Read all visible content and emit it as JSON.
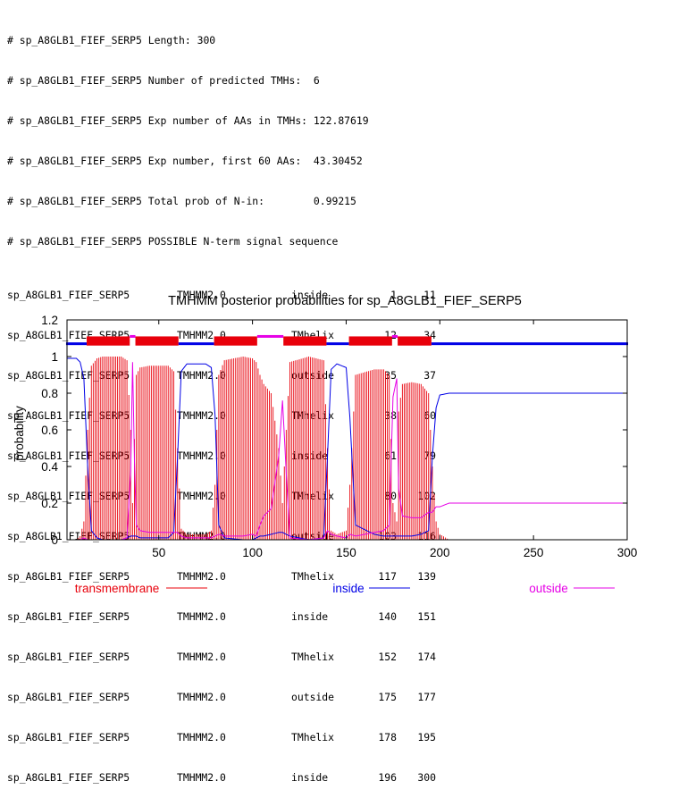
{
  "report": {
    "header_lines": [
      "# sp_A8GLB1_FIEF_SERP5 Length: 300",
      "# sp_A8GLB1_FIEF_SERP5 Number of predicted TMHs:  6",
      "# sp_A8GLB1_FIEF_SERP5 Exp number of AAs in TMHs: 122.87619",
      "# sp_A8GLB1_FIEF_SERP5 Exp number, first 60 AAs:  43.30452",
      "# sp_A8GLB1_FIEF_SERP5 Total prob of N-in:        0.99215",
      "# sp_A8GLB1_FIEF_SERP5 POSSIBLE N-term signal sequence"
    ],
    "rows": [
      {
        "seq": "sp_A8GLB1_FIEF_SERP5",
        "prog": "TMHMM2.0",
        "loc": "inside",
        "start": "1",
        "end": "11"
      },
      {
        "seq": "sp_A8GLB1_FIEF_SERP5",
        "prog": "TMHMM2.0",
        "loc": "TMhelix",
        "start": "12",
        "end": "34"
      },
      {
        "seq": "sp_A8GLB1_FIEF_SERP5",
        "prog": "TMHMM2.0",
        "loc": "outside",
        "start": "35",
        "end": "37"
      },
      {
        "seq": "sp_A8GLB1_FIEF_SERP5",
        "prog": "TMHMM2.0",
        "loc": "TMhelix",
        "start": "38",
        "end": "60"
      },
      {
        "seq": "sp_A8GLB1_FIEF_SERP5",
        "prog": "TMHMM2.0",
        "loc": "inside",
        "start": "61",
        "end": "79"
      },
      {
        "seq": "sp_A8GLB1_FIEF_SERP5",
        "prog": "TMHMM2.0",
        "loc": "TMhelix",
        "start": "80",
        "end": "102"
      },
      {
        "seq": "sp_A8GLB1_FIEF_SERP5",
        "prog": "TMHMM2.0",
        "loc": "outside",
        "start": "103",
        "end": "116"
      },
      {
        "seq": "sp_A8GLB1_FIEF_SERP5",
        "prog": "TMHMM2.0",
        "loc": "TMhelix",
        "start": "117",
        "end": "139"
      },
      {
        "seq": "sp_A8GLB1_FIEF_SERP5",
        "prog": "TMHMM2.0",
        "loc": "inside",
        "start": "140",
        "end": "151"
      },
      {
        "seq": "sp_A8GLB1_FIEF_SERP5",
        "prog": "TMHMM2.0",
        "loc": "TMhelix",
        "start": "152",
        "end": "174"
      },
      {
        "seq": "sp_A8GLB1_FIEF_SERP5",
        "prog": "TMHMM2.0",
        "loc": "outside",
        "start": "175",
        "end": "177"
      },
      {
        "seq": "sp_A8GLB1_FIEF_SERP5",
        "prog": "TMHMM2.0",
        "loc": "TMhelix",
        "start": "178",
        "end": "195"
      },
      {
        "seq": "sp_A8GLB1_FIEF_SERP5",
        "prog": "TMHMM2.0",
        "loc": "inside",
        "start": "196",
        "end": "300"
      }
    ]
  },
  "chart_data": {
    "type": "line",
    "title": "TMHMM posterior probabilities for sp_A8GLB1_FIEF_SERP5",
    "xlabel": "",
    "ylabel": "probability",
    "xlim": [
      1,
      300
    ],
    "ylim": [
      0,
      1.2
    ],
    "xticks": [
      50,
      100,
      150,
      200,
      250,
      300
    ],
    "yticks": [
      0,
      0.2,
      0.4,
      0.6,
      0.8,
      1,
      1.2
    ],
    "grid": false,
    "legend_position": "bottom",
    "colors": {
      "transmembrane": "#e8000b",
      "inside": "#0000e6",
      "outside": "#e600e6"
    },
    "series": [
      {
        "name": "transmembrane",
        "style": "impulses",
        "color": "#e8000b",
        "x": [
          1,
          6,
          8,
          10,
          12,
          14,
          17,
          20,
          30,
          33,
          35,
          36,
          37,
          38,
          40,
          45,
          55,
          58,
          60,
          62,
          65,
          75,
          78,
          80,
          82,
          85,
          95,
          100,
          102,
          104,
          106,
          110,
          114,
          116,
          118,
          120,
          130,
          138,
          140,
          142,
          145,
          150,
          152,
          155,
          165,
          170,
          173,
          175,
          177,
          178,
          180,
          185,
          190,
          194,
          196,
          198,
          200,
          205,
          300
        ],
        "y": [
          0.0,
          0.0,
          0.02,
          0.1,
          0.6,
          0.95,
          0.99,
          1.0,
          1.0,
          0.98,
          0.6,
          0.2,
          0.55,
          0.9,
          0.94,
          0.95,
          0.95,
          0.92,
          0.5,
          0.06,
          0.03,
          0.03,
          0.05,
          0.3,
          0.9,
          0.98,
          1.0,
          0.99,
          0.97,
          0.9,
          0.85,
          0.8,
          0.5,
          0.2,
          0.6,
          0.97,
          1.0,
          0.98,
          0.5,
          0.05,
          0.03,
          0.05,
          0.3,
          0.9,
          0.93,
          0.93,
          0.9,
          0.2,
          0.1,
          0.7,
          0.85,
          0.86,
          0.85,
          0.8,
          0.4,
          0.1,
          0.03,
          0.0,
          0.0
        ]
      },
      {
        "name": "inside",
        "style": "line",
        "color": "#0000e6",
        "x": [
          1,
          6,
          8,
          10,
          12,
          14,
          17,
          20,
          30,
          33,
          35,
          36,
          37,
          38,
          40,
          45,
          55,
          58,
          60,
          62,
          65,
          75,
          78,
          80,
          82,
          85,
          95,
          100,
          102,
          104,
          106,
          110,
          114,
          116,
          118,
          120,
          130,
          138,
          140,
          142,
          145,
          150,
          152,
          155,
          165,
          170,
          173,
          175,
          177,
          178,
          180,
          185,
          190,
          194,
          196,
          198,
          200,
          205,
          300
        ],
        "y": [
          0.99,
          0.99,
          0.97,
          0.88,
          0.4,
          0.05,
          0.01,
          0.0,
          0.0,
          0.01,
          0.02,
          0.02,
          0.02,
          0.02,
          0.01,
          0.01,
          0.01,
          0.04,
          0.45,
          0.92,
          0.96,
          0.96,
          0.94,
          0.68,
          0.08,
          0.01,
          0.0,
          0.0,
          0.01,
          0.02,
          0.02,
          0.03,
          0.04,
          0.04,
          0.03,
          0.02,
          0.0,
          0.01,
          0.45,
          0.93,
          0.96,
          0.94,
          0.67,
          0.08,
          0.03,
          0.02,
          0.02,
          0.02,
          0.02,
          0.02,
          0.02,
          0.02,
          0.03,
          0.05,
          0.45,
          0.72,
          0.79,
          0.8,
          0.8
        ]
      },
      {
        "name": "outside",
        "style": "line",
        "color": "#e600e6",
        "x": [
          1,
          6,
          8,
          10,
          12,
          14,
          17,
          20,
          30,
          33,
          35,
          36,
          37,
          38,
          40,
          45,
          55,
          58,
          60,
          62,
          65,
          75,
          78,
          80,
          82,
          85,
          95,
          100,
          102,
          104,
          106,
          110,
          114,
          116,
          118,
          120,
          130,
          138,
          140,
          142,
          145,
          150,
          152,
          155,
          165,
          170,
          173,
          175,
          177,
          178,
          180,
          185,
          190,
          194,
          196,
          198,
          200,
          205,
          300
        ],
        "y": [
          0.0,
          0.0,
          0.0,
          0.01,
          0.0,
          0.0,
          0.0,
          0.0,
          0.0,
          0.01,
          0.38,
          0.97,
          0.43,
          0.08,
          0.05,
          0.04,
          0.04,
          0.04,
          0.04,
          0.02,
          0.01,
          0.01,
          0.01,
          0.02,
          0.03,
          0.02,
          0.02,
          0.03,
          0.02,
          0.08,
          0.13,
          0.17,
          0.46,
          0.76,
          0.37,
          0.01,
          0.0,
          0.01,
          0.05,
          0.03,
          0.02,
          0.01,
          0.03,
          0.02,
          0.04,
          0.05,
          0.08,
          0.78,
          0.88,
          0.28,
          0.13,
          0.12,
          0.12,
          0.15,
          0.15,
          0.18,
          0.18,
          0.2,
          0.2
        ]
      }
    ],
    "topology_bars": {
      "level": 1.07,
      "segments": [
        {
          "start": 1,
          "end": 11,
          "loc": "inside"
        },
        {
          "start": 12,
          "end": 34,
          "loc": "TMhelix"
        },
        {
          "start": 35,
          "end": 37,
          "loc": "outside"
        },
        {
          "start": 38,
          "end": 60,
          "loc": "TMhelix"
        },
        {
          "start": 61,
          "end": 79,
          "loc": "inside"
        },
        {
          "start": 80,
          "end": 102,
          "loc": "TMhelix"
        },
        {
          "start": 103,
          "end": 116,
          "loc": "outside"
        },
        {
          "start": 117,
          "end": 139,
          "loc": "TMhelix"
        },
        {
          "start": 140,
          "end": 151,
          "loc": "inside"
        },
        {
          "start": 152,
          "end": 174,
          "loc": "TMhelix"
        },
        {
          "start": 175,
          "end": 177,
          "loc": "outside"
        },
        {
          "start": 178,
          "end": 195,
          "loc": "TMhelix"
        },
        {
          "start": 196,
          "end": 300,
          "loc": "inside"
        }
      ]
    }
  }
}
